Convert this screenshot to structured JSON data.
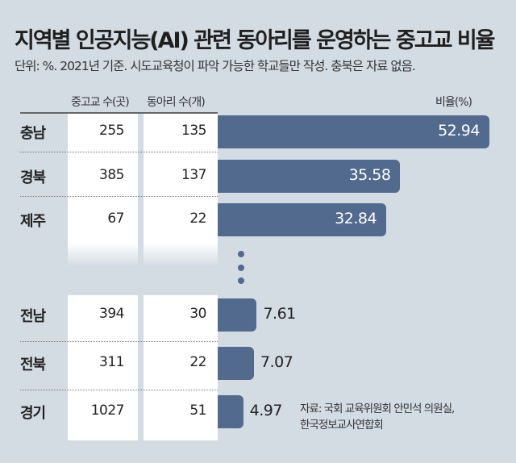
{
  "title": "지역별 인공지능(AI) 관련 동아리를 운영하는 중고교 비율",
  "subtitle": "단위: %. 2021년 기준. 시도교육청이 파악 가능한 학교들만 작성. 충북은 자료 없음.",
  "columns": {
    "schools": "중고교 수(곳)",
    "clubs": "동아리 수(개)",
    "ratio": "비율(%)"
  },
  "source": [
    "자료: 국회 교육위원회 안민석 의원실,",
    "한국정보교사연합회"
  ],
  "chart_data": {
    "type": "bar",
    "orientation": "horizontal",
    "categories": [
      "충남",
      "경북",
      "제주",
      "전남",
      "전북",
      "경기"
    ],
    "values": [
      52.94,
      35.58,
      32.84,
      7.61,
      7.07,
      4.97
    ],
    "value_labels": [
      "52.94",
      "35.58",
      "32.84",
      "7.61",
      "7.07",
      "4.97"
    ],
    "ylabel": "비율(%)",
    "xlim": [
      0,
      52.94
    ],
    "bar_color": "#526a8e",
    "table": {
      "schools": [
        "255",
        "385",
        "67",
        "394",
        "311",
        "1027"
      ],
      "clubs": [
        "135",
        "137",
        "22",
        "30",
        "22",
        "51"
      ]
    },
    "omitted_rows_marker": "vertical ellipsis between 제주 and 전남"
  }
}
